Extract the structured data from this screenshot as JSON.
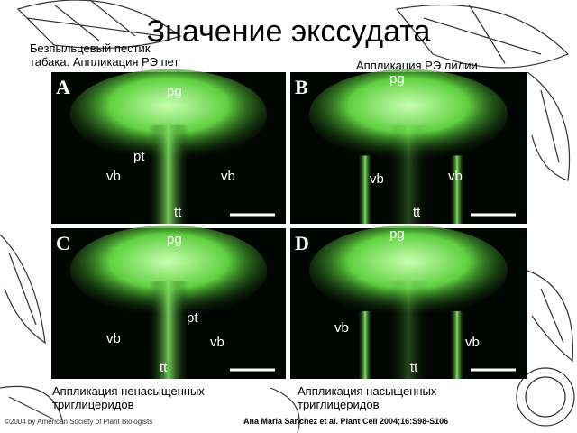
{
  "title": "Значение экссудата",
  "captions": {
    "top_left": "Безпыльцевый пестик табака. Аппликация РЭ пет",
    "top_right": "Аппликация РЭ лилии",
    "bottom_left": "Аппликация ненасыщенных триглицеридов",
    "bottom_right": "Аппликация насыщенных триглицеридов"
  },
  "panels": [
    {
      "letter": "A",
      "labels": [
        "pg",
        "pt",
        "vb",
        "vb",
        "tt"
      ]
    },
    {
      "letter": "B",
      "labels": [
        "pg",
        "vb",
        "vb",
        "tt"
      ]
    },
    {
      "letter": "C",
      "labels": [
        "pg",
        "pt",
        "vb",
        "vb",
        "tt"
      ]
    },
    {
      "letter": "D",
      "labels": [
        "pg",
        "vb",
        "vb",
        "tt"
      ]
    }
  ],
  "footer": {
    "copyright": "©2004 by American Society of Plant Biologists",
    "citation": "Ana Maria Sanchez et al. Plant Cell 2004;16:S98-S106"
  }
}
